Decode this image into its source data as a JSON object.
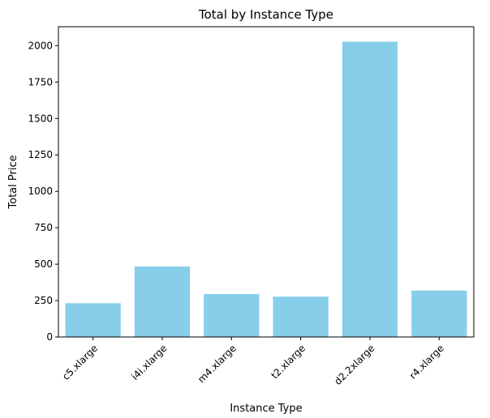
{
  "chart_data": {
    "type": "bar",
    "title": "Total by Instance Type",
    "xlabel": "Instance Type",
    "ylabel": "Total Price",
    "categories": [
      "c5.xlarge",
      "i4i.xlarge",
      "m4.xlarge",
      "t2.xlarge",
      "d2.2xlarge",
      "r4.xlarge"
    ],
    "values": [
      232,
      484,
      295,
      277,
      2027,
      319
    ],
    "ylim": [
      0,
      2130
    ],
    "yticks": [
      0,
      250,
      500,
      750,
      1000,
      1250,
      1500,
      1750,
      2000
    ],
    "bar_color": "#87ceeb",
    "grid": false,
    "legend": "none"
  }
}
